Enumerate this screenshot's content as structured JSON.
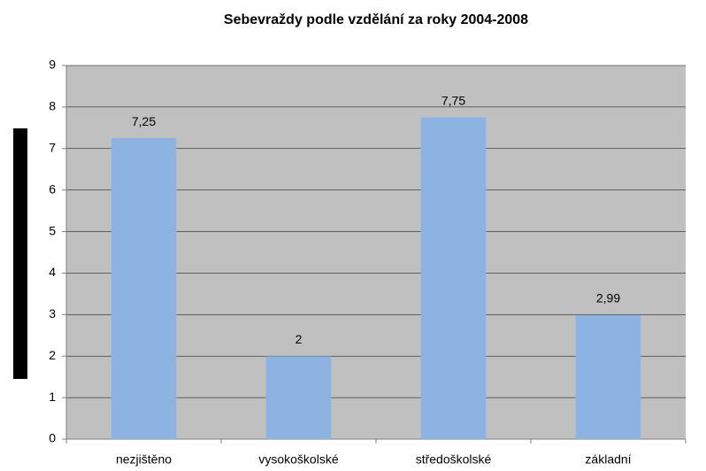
{
  "chart_data": {
    "type": "bar",
    "title": "Sebevraždy podle vzdělání za roky 2004-2008",
    "categories": [
      "nezjištěno",
      "vysokoškolské",
      "středoškolské",
      "základní"
    ],
    "values": [
      7.25,
      2,
      7.75,
      2.99
    ],
    "value_labels": [
      "7,25",
      "2",
      "7,75",
      "2,99"
    ],
    "color": "#8db3e2",
    "ylim": [
      0,
      9
    ],
    "yticks": [
      0,
      1,
      2,
      3,
      4,
      5,
      6,
      7,
      8,
      9
    ],
    "grid": true
  }
}
